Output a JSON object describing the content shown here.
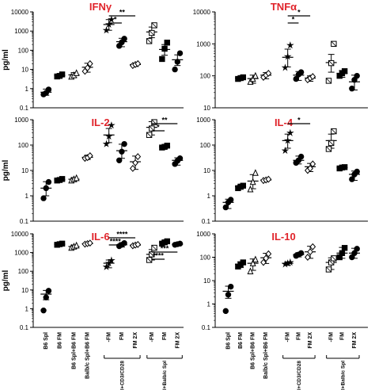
{
  "y_axis_label": "pg/ml",
  "title_color": "#e0242b",
  "x_tick_labels": [
    "B6 Spl",
    "B6 FM",
    "B6 Spl+B6 FM",
    "Balb/c Spl+B6 FM",
    "-FM",
    "FM",
    "FM 2X",
    "-FM",
    "FM",
    "FM 2X"
  ],
  "group_labels": [
    "B6 Spl+CD3/CD28",
    "B6 Spl+Balb/c Spl"
  ],
  "chart_data": [
    {
      "type": "scatter",
      "title": "IFNγ",
      "ylabel": "pg/ml",
      "scale": "log",
      "ylim": [
        0.1,
        10000
      ],
      "tick_labels": [
        "0.1",
        "1",
        "10",
        "100",
        "1000",
        "10000"
      ],
      "show_x_labels": false,
      "groups": [
        {
          "mean": 0.65,
          "points": [
            0.5,
            0.6,
            0.9
          ]
        },
        {
          "mean": 4.8,
          "points": [
            4.3,
            4.6,
            5.5
          ]
        },
        {
          "mean": 5.2,
          "points": [
            4.2,
            5.0,
            6.5
          ]
        },
        {
          "mean": 13,
          "points": [
            8,
            12,
            20
          ]
        },
        {
          "mean": 2200,
          "points": [
            1100,
            2200,
            4000
          ]
        },
        {
          "mean": 280,
          "points": [
            170,
            260,
            400
          ]
        },
        {
          "mean": 18,
          "points": [
            16,
            18,
            20
          ]
        },
        {
          "mean": 900,
          "points": [
            300,
            800,
            2000
          ]
        },
        {
          "mean": 110,
          "points": [
            35,
            120,
            250
          ]
        },
        {
          "mean": 32,
          "points": [
            10,
            25,
            70
          ]
        }
      ],
      "significance": [
        {
          "from": 4,
          "to": 6,
          "label": "**"
        },
        {
          "from": 4,
          "to": 5,
          "label": "*"
        }
      ]
    },
    {
      "type": "scatter",
      "title": "TNFα",
      "ylabel": "",
      "scale": "log",
      "ylim": [
        10,
        10000
      ],
      "tick_labels": [
        "10",
        "100",
        "1000",
        "10000"
      ],
      "show_x_labels": false,
      "groups": [
        {
          "mean": 85,
          "points": [
            80,
            85,
            90
          ]
        },
        {
          "mean": 82,
          "points": [
            65,
            80,
            100
          ]
        },
        {
          "mean": 105,
          "points": [
            90,
            105,
            120
          ]
        },
        {
          "mean": 380,
          "points": [
            180,
            400,
            900
          ]
        },
        {
          "mean": 105,
          "points": [
            80,
            110,
            130
          ]
        },
        {
          "mean": 85,
          "points": [
            75,
            85,
            95
          ]
        },
        {
          "mean": 260,
          "points": [
            70,
            250,
            1000
          ]
        },
        {
          "mean": 120,
          "points": [
            100,
            120,
            140
          ]
        },
        {
          "mean": 65,
          "points": [
            40,
            75,
            100
          ]
        }
      ],
      "group_slots": [
        1,
        2,
        3,
        4,
        5,
        6,
        7,
        8,
        9
      ],
      "significance": [
        {
          "from": 4,
          "to": 6,
          "label": "*"
        },
        {
          "from": 4,
          "to": 5,
          "label": "*"
        }
      ]
    },
    {
      "type": "scatter",
      "title": "IL-2",
      "ylabel": "pg/ml",
      "scale": "log",
      "ylim": [
        0.1,
        1000
      ],
      "tick_labels": [
        "0.1",
        "1",
        "10",
        "100",
        "1000"
      ],
      "show_x_labels": false,
      "groups": [
        {
          "mean": 2.0,
          "points": [
            0.8,
            2.0,
            3.5
          ]
        },
        {
          "mean": 4.3,
          "points": [
            4.0,
            4.2,
            4.6
          ]
        },
        {
          "mean": 4.5,
          "points": [
            4.0,
            4.5,
            5.0
          ]
        },
        {
          "mean": 33,
          "points": [
            30,
            32,
            38
          ]
        },
        {
          "mean": 250,
          "points": [
            110,
            220,
            600
          ]
        },
        {
          "mean": 60,
          "points": [
            25,
            55,
            110
          ]
        },
        {
          "mean": 22,
          "points": [
            12,
            20,
            35
          ]
        },
        {
          "mean": 500,
          "points": [
            250,
            450,
            800
          ]
        },
        {
          "mean": 85,
          "points": [
            80,
            85,
            95
          ]
        },
        {
          "mean": 25,
          "points": [
            18,
            24,
            30
          ]
        }
      ],
      "significance": [
        {
          "from": 7,
          "to": 9,
          "label": "**"
        },
        {
          "from": 7,
          "to": 8,
          "label": "*"
        }
      ]
    },
    {
      "type": "scatter",
      "title": "IL-4",
      "ylabel": "",
      "scale": "log",
      "ylim": [
        0.1,
        1000
      ],
      "tick_labels": [
        "0.1",
        "1",
        "10",
        "100",
        "1000"
      ],
      "show_x_labels": false,
      "groups": [
        {
          "mean": 0.55,
          "points": [
            0.35,
            0.55,
            0.7
          ]
        },
        {
          "mean": 2.3,
          "points": [
            2.0,
            2.3,
            2.5
          ]
        },
        {
          "mean": 3.8,
          "points": [
            1.8,
            3.5,
            8
          ]
        },
        {
          "mean": 4.2,
          "points": [
            4.0,
            4.2,
            4.5
          ]
        },
        {
          "mean": 150,
          "points": [
            60,
            150,
            300
          ]
        },
        {
          "mean": 25,
          "points": [
            20,
            25,
            35
          ]
        },
        {
          "mean": 14,
          "points": [
            10,
            12,
            18
          ]
        },
        {
          "mean": 150,
          "points": [
            70,
            120,
            350
          ]
        },
        {
          "mean": 13,
          "points": [
            12,
            13,
            13.5
          ]
        },
        {
          "mean": 7,
          "points": [
            4.5,
            7,
            9
          ]
        }
      ],
      "significance": [
        {
          "from": 4,
          "to": 6,
          "label": "*"
        }
      ]
    },
    {
      "type": "scatter",
      "title": "IL-6",
      "ylabel": "pg/ml",
      "scale": "log",
      "ylim": [
        0.1,
        10000
      ],
      "tick_labels": [
        "0.1",
        "1",
        "10",
        "100",
        "1000",
        "10000"
      ],
      "show_x_labels": true,
      "groups": [
        {
          "mean": 6,
          "points": [
            0.8,
            4,
            9
          ]
        },
        {
          "mean": 2800,
          "points": [
            2600,
            2800,
            3000
          ]
        },
        {
          "mean": 2100,
          "points": [
            1800,
            2100,
            2400
          ]
        },
        {
          "mean": 3000,
          "points": [
            2800,
            3000,
            3200
          ]
        },
        {
          "mean": 270,
          "points": [
            170,
            270,
            380
          ]
        },
        {
          "mean": 2600,
          "points": [
            2200,
            2600,
            3200
          ]
        },
        {
          "mean": 2500,
          "points": [
            2300,
            2500,
            2700
          ]
        },
        {
          "mean": 800,
          "points": [
            400,
            800,
            1800
          ]
        },
        {
          "mean": 3500,
          "points": [
            3000,
            3500,
            4000
          ]
        },
        {
          "mean": 2800,
          "points": [
            2600,
            2800,
            3000
          ]
        }
      ],
      "significance": [
        {
          "from": 4,
          "to": 6,
          "label": "****"
        },
        {
          "from": 4,
          "to": 5,
          "label": "****"
        },
        {
          "from": 7,
          "to": 9,
          "label": "***"
        },
        {
          "from": 7,
          "to": 8,
          "label": "****"
        }
      ]
    },
    {
      "type": "scatter",
      "title": "IL-10",
      "ylabel": "",
      "scale": "log",
      "ylim": [
        0.1,
        1000
      ],
      "tick_labels": [
        "0.1",
        "1",
        "10",
        "100",
        "1000"
      ],
      "show_x_labels": true,
      "groups": [
        {
          "mean": 3.5,
          "points": [
            0.5,
            2.5,
            5.5
          ]
        },
        {
          "mean": 50,
          "points": [
            40,
            50,
            60
          ]
        },
        {
          "mean": 55,
          "points": [
            25,
            55,
            80
          ]
        },
        {
          "mean": 95,
          "points": [
            60,
            90,
            140
          ]
        },
        {
          "mean": 55,
          "points": [
            50,
            55,
            60
          ]
        },
        {
          "mean": 130,
          "points": [
            115,
            130,
            150
          ]
        },
        {
          "mean": 170,
          "points": [
            100,
            170,
            280
          ]
        },
        {
          "mean": 60,
          "points": [
            30,
            60,
            90
          ]
        },
        {
          "mean": 150,
          "points": [
            100,
            150,
            250
          ]
        },
        {
          "mean": 150,
          "points": [
            100,
            150,
            230
          ]
        }
      ],
      "significance": []
    }
  ]
}
